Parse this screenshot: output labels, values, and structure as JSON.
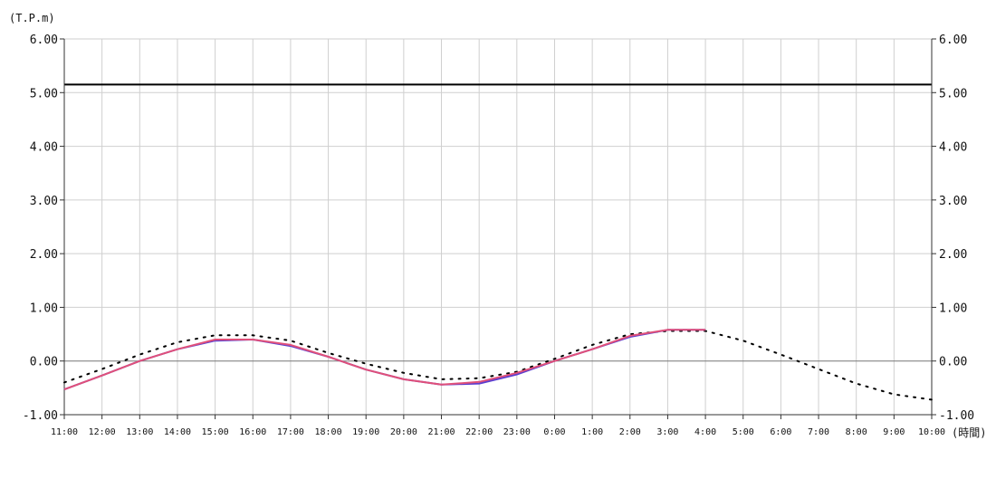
{
  "chart_data": {
    "type": "line",
    "ylabel": "(T.P.m)",
    "xlabel": "(時間)",
    "ylim": [
      -1,
      6
    ],
    "yticks": [
      "6.00",
      "5.00",
      "4.00",
      "3.00",
      "2.00",
      "1.00",
      "0.00",
      "-1.00"
    ],
    "categories": [
      "11:00",
      "12:00",
      "13:00",
      "14:00",
      "15:00",
      "16:00",
      "17:00",
      "18:00",
      "19:00",
      "20:00",
      "21:00",
      "22:00",
      "23:00",
      "0:00",
      "1:00",
      "2:00",
      "3:00",
      "4:00",
      "5:00",
      "6:00",
      "7:00",
      "8:00",
      "9:00",
      "10:00"
    ],
    "grid": true,
    "threshold": 5.15,
    "series": [
      {
        "style": "dotted",
        "color": "#000000",
        "values": [
          -0.4,
          -0.15,
          0.12,
          0.35,
          0.48,
          0.48,
          0.38,
          0.15,
          -0.05,
          -0.22,
          -0.34,
          -0.32,
          -0.2,
          0.04,
          0.3,
          0.5,
          0.56,
          0.56,
          0.38,
          0.12,
          -0.15,
          -0.42,
          -0.62,
          -0.72
        ]
      },
      {
        "style": "solid",
        "color": "#5b3fd0",
        "values": [
          -0.53,
          -0.27,
          0.0,
          0.22,
          0.38,
          0.4,
          0.28,
          0.08,
          -0.16,
          -0.34,
          -0.44,
          -0.42,
          -0.25,
          0.0,
          0.22,
          0.45,
          0.58,
          0.58,
          null,
          null,
          null,
          null,
          null,
          null
        ]
      },
      {
        "style": "solid",
        "color": "#e0507a",
        "values": [
          -0.53,
          -0.27,
          0.0,
          0.22,
          0.4,
          0.4,
          0.3,
          0.08,
          -0.16,
          -0.34,
          -0.44,
          -0.39,
          -0.22,
          0.0,
          0.22,
          0.47,
          0.58,
          0.58,
          null,
          null,
          null,
          null,
          null,
          null
        ]
      }
    ]
  }
}
